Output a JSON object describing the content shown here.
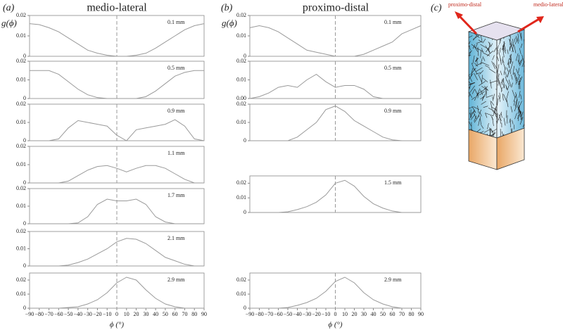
{
  "figure": {
    "panels": [
      {
        "label": "(a)",
        "title": "medio-lateral"
      },
      {
        "label": "(b)",
        "title": "proximo-distal"
      },
      {
        "label": "(c)"
      }
    ],
    "illustration": {
      "arrow_left": "proximo-distal",
      "arrow_right": "medio-lateral"
    }
  },
  "chart_data": [
    {
      "type": "line",
      "ylabel": "g(ϕ)",
      "annotation": "0.1 mm",
      "xlim": [
        -90,
        90
      ],
      "ylim": [
        0,
        0.02
      ],
      "yticks": [
        0,
        0.01,
        0.02
      ],
      "vline": 0,
      "x": [
        -90,
        -80,
        -70,
        -60,
        -50,
        -40,
        -30,
        -20,
        -10,
        0,
        10,
        20,
        30,
        40,
        50,
        60,
        70,
        80,
        90
      ],
      "series": [
        {
          "color": "#9a9a9a",
          "values": [
            0.016,
            0.0155,
            0.014,
            0.012,
            0.009,
            0.006,
            0.003,
            0.0015,
            0.0005,
            0,
            0,
            0.0005,
            0.0015,
            0.004,
            0.007,
            0.01,
            0.013,
            0.015,
            0.016
          ]
        }
      ]
    },
    {
      "type": "line",
      "annotation": "0.5 mm",
      "xlim": [
        -90,
        90
      ],
      "ylim": [
        0,
        0.02
      ],
      "yticks": [
        0,
        0.01,
        0.02
      ],
      "vline": 0,
      "x": [
        -90,
        -80,
        -70,
        -60,
        -50,
        -40,
        -30,
        -20,
        -10,
        0,
        10,
        20,
        30,
        40,
        50,
        60,
        70,
        80,
        90
      ],
      "series": [
        {
          "color": "#9a9a9a",
          "values": [
            0.015,
            0.015,
            0.015,
            0.013,
            0.009,
            0.005,
            0.002,
            0.0005,
            0,
            0,
            0,
            0,
            0.001,
            0.004,
            0.008,
            0.012,
            0.014,
            0.015,
            0.015
          ]
        }
      ]
    },
    {
      "type": "line",
      "annotation": "0.9 mm",
      "xlim": [
        -90,
        90
      ],
      "ylim": [
        0,
        0.02
      ],
      "yticks": [
        0,
        0.01,
        0.02
      ],
      "vline": 0,
      "x": [
        -90,
        -80,
        -70,
        -60,
        -50,
        -40,
        -30,
        -20,
        -10,
        0,
        10,
        20,
        30,
        40,
        50,
        60,
        70,
        80,
        90
      ],
      "series": [
        {
          "color": "#9a9a9a",
          "values": [
            0,
            0,
            0,
            0.001,
            0.007,
            0.011,
            0.01,
            0.009,
            0.008,
            0.003,
            0,
            0.006,
            0.007,
            0.008,
            0.009,
            0.0115,
            0.008,
            0.001,
            0
          ]
        }
      ]
    },
    {
      "type": "line",
      "annotation": "1.1 mm",
      "xlim": [
        -90,
        90
      ],
      "ylim": [
        0,
        0.02
      ],
      "yticks": [
        0,
        0.01,
        0.02
      ],
      "vline": 0,
      "x": [
        -90,
        -80,
        -70,
        -60,
        -50,
        -40,
        -30,
        -20,
        -10,
        0,
        10,
        20,
        30,
        40,
        50,
        60,
        70,
        80,
        90
      ],
      "series": [
        {
          "color": "#9a9a9a",
          "values": [
            0,
            0,
            0,
            0,
            0.001,
            0.004,
            0.007,
            0.009,
            0.0095,
            0.008,
            0.006,
            0.008,
            0.0095,
            0.0095,
            0.008,
            0.005,
            0.002,
            0,
            0
          ]
        }
      ]
    },
    {
      "type": "line",
      "annotation": "1.7 mm",
      "xlim": [
        -90,
        90
      ],
      "ylim": [
        0,
        0.02
      ],
      "yticks": [
        0,
        0.01,
        0.02
      ],
      "vline": 0,
      "x": [
        -90,
        -80,
        -70,
        -60,
        -50,
        -40,
        -30,
        -20,
        -10,
        0,
        10,
        20,
        30,
        40,
        50,
        60,
        70,
        80,
        90
      ],
      "series": [
        {
          "color": "#9a9a9a",
          "values": [
            0,
            0,
            0,
            0,
            0,
            0.0005,
            0.004,
            0.011,
            0.014,
            0.013,
            0.013,
            0.014,
            0.011,
            0.004,
            0.001,
            0,
            0,
            0,
            0
          ]
        }
      ]
    },
    {
      "type": "line",
      "annotation": "2.1 mm",
      "xlim": [
        -90,
        90
      ],
      "ylim": [
        0,
        0.02
      ],
      "yticks": [
        0,
        0.01,
        0.02
      ],
      "vline": 0,
      "x": [
        -90,
        -80,
        -70,
        -60,
        -50,
        -40,
        -30,
        -20,
        -10,
        0,
        10,
        20,
        30,
        40,
        50,
        60,
        70,
        80,
        90
      ],
      "series": [
        {
          "color": "#9a9a9a",
          "values": [
            0,
            0,
            0,
            0,
            0.0005,
            0.002,
            0.004,
            0.007,
            0.01,
            0.014,
            0.016,
            0.0155,
            0.013,
            0.009,
            0.005,
            0.003,
            0.001,
            0,
            0
          ]
        }
      ]
    },
    {
      "type": "line",
      "annotation": "2.9 mm",
      "xlabel": "ϕ (°)",
      "xlim": [
        -90,
        90
      ],
      "ylim": [
        0,
        0.025
      ],
      "yticks": [
        0,
        0.01,
        0.02
      ],
      "vline": 0,
      "xticks": [
        {
          "value": -90,
          "label": "−90"
        },
        {
          "value": -80,
          "label": "−80"
        },
        {
          "value": -70,
          "label": "−70"
        },
        {
          "value": -60,
          "label": "−60"
        },
        {
          "value": -50,
          "label": "−50"
        },
        {
          "value": -40,
          "label": "−40"
        },
        {
          "value": -30,
          "label": "−30"
        },
        {
          "value": -20,
          "label": "−20"
        },
        {
          "value": -10,
          "label": "−10"
        },
        0,
        10,
        20,
        30,
        40,
        50,
        60,
        70,
        80,
        90
      ],
      "x": [
        -90,
        -80,
        -70,
        -60,
        -50,
        -40,
        -30,
        -20,
        -10,
        0,
        10,
        20,
        30,
        40,
        50,
        60,
        70,
        80,
        90
      ],
      "series": [
        {
          "color": "#9a9a9a",
          "values": [
            0,
            0,
            0,
            0,
            0.0005,
            0.001,
            0.003,
            0.006,
            0.011,
            0.018,
            0.022,
            0.02,
            0.013,
            0.007,
            0.003,
            0.001,
            0,
            0,
            0
          ]
        }
      ]
    },
    {
      "type": "line",
      "ylabel": "g(ϕ)",
      "annotation": "0.1 mm",
      "xlim": [
        -90,
        90
      ],
      "ylim": [
        0,
        0.02
      ],
      "yticks": [
        0,
        0.01,
        0.02
      ],
      "vline": 0,
      "x": [
        -90,
        -80,
        -70,
        -60,
        -50,
        -40,
        -30,
        -20,
        -10,
        0,
        10,
        20,
        30,
        40,
        50,
        60,
        70,
        80,
        90
      ],
      "series": [
        {
          "color": "#9a9a9a",
          "values": [
            0.014,
            0.015,
            0.014,
            0.012,
            0.009,
            0.006,
            0.003,
            0.002,
            0.001,
            0,
            0,
            0,
            0.001,
            0.003,
            0.005,
            0.007,
            0.011,
            0.013,
            0.015
          ]
        }
      ]
    },
    {
      "type": "line",
      "annotation": "0.5 mm",
      "xlim": [
        -90,
        90
      ],
      "ylim": [
        0,
        0.02
      ],
      "yticks": [
        {
          "value": 0,
          "label": "0.00"
        },
        0.01,
        0.02
      ],
      "vline": 0,
      "x": [
        -90,
        -80,
        -70,
        -60,
        -50,
        -40,
        -30,
        -20,
        -10,
        0,
        10,
        20,
        30,
        40,
        50,
        60,
        70,
        80,
        90
      ],
      "series": [
        {
          "color": "#9a9a9a",
          "values": [
            0,
            0.001,
            0.003,
            0.006,
            0.007,
            0.006,
            0.01,
            0.013,
            0.009,
            0.006,
            0.007,
            0.007,
            0.005,
            0.001,
            0,
            0,
            0,
            0,
            0
          ]
        }
      ]
    },
    {
      "type": "line",
      "annotation": "0.9 mm",
      "xlim": [
        -90,
        90
      ],
      "ylim": [
        0,
        0.02
      ],
      "yticks": [
        0,
        0.01,
        0.02
      ],
      "vline": 0,
      "x": [
        -90,
        -80,
        -70,
        -60,
        -50,
        -40,
        -30,
        -20,
        -10,
        0,
        10,
        20,
        30,
        40,
        50,
        60,
        70,
        80,
        90
      ],
      "series": [
        {
          "color": "#9a9a9a",
          "values": [
            0,
            0,
            0,
            0,
            0,
            0.002,
            0.006,
            0.01,
            0.017,
            0.019,
            0.016,
            0.011,
            0.008,
            0.005,
            0.002,
            0.0005,
            0,
            0,
            0
          ]
        }
      ]
    },
    {
      "type": "line",
      "annotation": "1.5 mm",
      "xlim": [
        -90,
        90
      ],
      "ylim": [
        0,
        0.025
      ],
      "yticks": [
        0,
        0.01,
        0.02
      ],
      "vline": 0,
      "x": [
        -90,
        -80,
        -70,
        -60,
        -50,
        -40,
        -30,
        -20,
        -10,
        0,
        10,
        20,
        30,
        40,
        50,
        60,
        70,
        80,
        90
      ],
      "series": [
        {
          "color": "#9a9a9a",
          "values": [
            0,
            0,
            0,
            0,
            0.0005,
            0.002,
            0.004,
            0.007,
            0.012,
            0.02,
            0.022,
            0.018,
            0.011,
            0.006,
            0.003,
            0.001,
            0,
            0,
            0
          ]
        }
      ]
    },
    {
      "type": "line",
      "annotation": "2.9 mm",
      "xlabel": "ϕ (°)",
      "xlim": [
        -90,
        90
      ],
      "ylim": [
        0,
        0.025
      ],
      "yticks": [
        0,
        0.01,
        0.02
      ],
      "vline": 0,
      "xticks": [
        {
          "value": -90,
          "label": "−90"
        },
        {
          "value": -80,
          "label": "−80"
        },
        {
          "value": -70,
          "label": "−70"
        },
        {
          "value": -60,
          "label": "−60"
        },
        {
          "value": -50,
          "label": "−50"
        },
        {
          "value": -40,
          "label": "−40"
        },
        {
          "value": -30,
          "label": "−30"
        },
        {
          "value": -20,
          "label": "−20"
        },
        {
          "value": -10,
          "label": "−10"
        },
        0,
        10,
        20,
        30,
        40,
        50,
        60,
        70,
        80,
        90
      ],
      "x": [
        -90,
        -80,
        -70,
        -60,
        -50,
        -40,
        -30,
        -20,
        -10,
        0,
        10,
        20,
        30,
        40,
        50,
        60,
        70,
        80,
        90
      ],
      "series": [
        {
          "color": "#9a9a9a",
          "values": [
            0,
            0,
            0,
            0,
            0.0005,
            0.002,
            0.004,
            0.007,
            0.012,
            0.019,
            0.022,
            0.018,
            0.011,
            0.006,
            0.003,
            0.001,
            0,
            0,
            0
          ]
        }
      ]
    }
  ]
}
